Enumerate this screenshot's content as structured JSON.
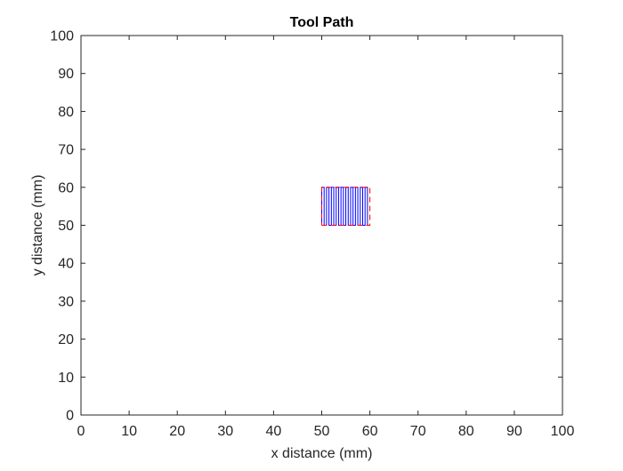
{
  "chart_data": {
    "type": "line",
    "title": "Tool Path",
    "xlabel": "x distance (mm)",
    "ylabel": "y distance (mm)",
    "xlim": [
      0,
      100
    ],
    "ylim": [
      0,
      100
    ],
    "xticks": [
      0,
      10,
      20,
      30,
      40,
      50,
      60,
      70,
      80,
      90,
      100
    ],
    "yticks": [
      0,
      10,
      20,
      30,
      40,
      50,
      60,
      70,
      80,
      90,
      100
    ],
    "grid": false,
    "box": true,
    "series": [
      {
        "style": "solid",
        "color": "#0000ff",
        "x": [
          50,
          50,
          50.5,
          50.5,
          51,
          51,
          51.5,
          51.5,
          52,
          52,
          52.5,
          52.5,
          53,
          53,
          53.5,
          53.5,
          54,
          54,
          54.5,
          54.5,
          55,
          55,
          55.5,
          55.5,
          56,
          56,
          56.5,
          56.5,
          57,
          57,
          57.5,
          57.5,
          58,
          58,
          58.5,
          58.5,
          59,
          59,
          59.5,
          59.5
        ],
        "y": [
          50,
          60,
          60,
          50,
          50,
          60,
          60,
          50,
          50,
          60,
          60,
          50,
          50,
          60,
          60,
          50,
          50,
          60,
          60,
          50,
          50,
          60,
          60,
          50,
          50,
          60,
          60,
          50,
          50,
          60,
          60,
          50,
          50,
          60,
          60,
          50,
          50,
          60,
          60,
          50
        ]
      },
      {
        "style": "dashed",
        "color": "#ff0000",
        "x": [
          50,
          60,
          60,
          50,
          50
        ],
        "y": [
          50,
          50,
          60,
          60,
          50
        ]
      }
    ]
  }
}
